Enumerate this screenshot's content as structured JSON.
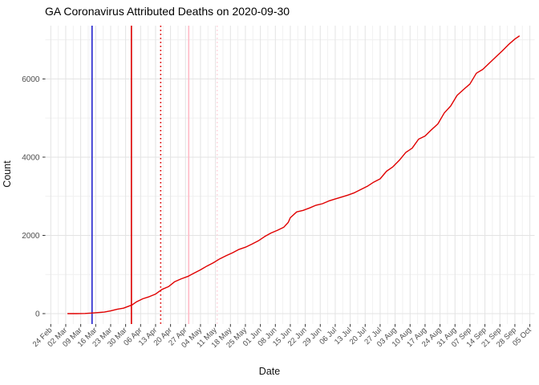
{
  "page": {
    "title": "GA Coronavirus Attributed Deaths on 2020-09-30"
  },
  "chart_data": {
    "type": "line",
    "title": "GA Coronavirus Attributed Deaths on 2020-09-30",
    "xlabel": "Date",
    "ylabel": "Count",
    "x_start_date": "2020-02-24",
    "x_tick_interval_days": 7,
    "x_tick_labels": [
      "24 Feb",
      "02 Mar",
      "09 Mar",
      "16 Mar",
      "23 Mar",
      "30 Mar",
      "06 Apr",
      "13 Apr",
      "20 Apr",
      "27 Apr",
      "04 May",
      "11 May",
      "18 May",
      "25 May",
      "01 Jun",
      "08 Jun",
      "15 Jun",
      "22 Jun",
      "29 Jun",
      "06 Jul",
      "13 Jul",
      "20 Jul",
      "27 Jul",
      "03 Aug",
      "10 Aug",
      "17 Aug",
      "24 Aug",
      "31 Aug",
      "07 Sep",
      "14 Sep",
      "21 Sep",
      "28 Sep",
      "05 Oct"
    ],
    "y_major_ticks": [
      0,
      2000,
      4000,
      6000
    ],
    "y_minor_gridlines": [
      1000,
      3000,
      5000,
      7000
    ],
    "ylim": [
      0,
      7400
    ],
    "grid": true,
    "legend": "none",
    "colors": {
      "series_line": "#e00000",
      "gridline_major": "#e3e3e3",
      "gridline_minor": "#f0f0f0",
      "tick_mark": "#333333",
      "tick_label": "#4d4d4d"
    },
    "vlines": [
      {
        "name": "event-line-blue-solid",
        "date": "2020-03-14",
        "day": 19.3,
        "color": "#2222cc",
        "style": "solid"
      },
      {
        "name": "event-line-red-solid",
        "date": "2020-04-02",
        "day": 37.7,
        "color": "#dd0000",
        "style": "solid"
      },
      {
        "name": "event-line-red-dotted",
        "date": "2020-04-16",
        "day": 51.4,
        "color": "#dd0000",
        "style": "dotted"
      },
      {
        "name": "event-line-pink-solid",
        "date": "2020-04-30",
        "day": 64.5,
        "color": "#ffb9c6",
        "style": "solid"
      },
      {
        "name": "event-line-pink-dotted",
        "date": "2020-05-13",
        "day": 77.8,
        "color": "#ffd3dc",
        "style": "dotted"
      }
    ],
    "series": [
      {
        "name": "cumulative_attributed_deaths",
        "color": "#e00000",
        "points_day_value": [
          [
            8,
            0
          ],
          [
            12,
            1
          ],
          [
            16,
            5
          ],
          [
            19,
            14
          ],
          [
            22,
            26
          ],
          [
            25,
            38
          ],
          [
            28,
            69
          ],
          [
            31,
            111
          ],
          [
            34,
            140
          ],
          [
            36,
            180
          ],
          [
            38,
            222
          ],
          [
            40,
            300
          ],
          [
            43,
            380
          ],
          [
            46,
            432
          ],
          [
            49,
            500
          ],
          [
            52,
            620
          ],
          [
            55,
            690
          ],
          [
            58,
            818
          ],
          [
            61,
            890
          ],
          [
            64,
            950
          ],
          [
            67,
            1036
          ],
          [
            70,
            1120
          ],
          [
            73,
            1216
          ],
          [
            76,
            1300
          ],
          [
            79,
            1400
          ],
          [
            82,
            1480
          ],
          [
            85,
            1557
          ],
          [
            88,
            1642
          ],
          [
            91,
            1697
          ],
          [
            94,
            1775
          ],
          [
            97,
            1860
          ],
          [
            100,
            1970
          ],
          [
            103,
            2060
          ],
          [
            106,
            2130
          ],
          [
            109,
            2210
          ],
          [
            111,
            2330
          ],
          [
            112,
            2450
          ],
          [
            115,
            2600
          ],
          [
            118,
            2640
          ],
          [
            121,
            2700
          ],
          [
            124,
            2770
          ],
          [
            127,
            2810
          ],
          [
            130,
            2880
          ],
          [
            133,
            2930
          ],
          [
            136,
            2980
          ],
          [
            139,
            3030
          ],
          [
            142,
            3090
          ],
          [
            145,
            3175
          ],
          [
            148,
            3255
          ],
          [
            151,
            3360
          ],
          [
            154,
            3445
          ],
          [
            157,
            3640
          ],
          [
            160,
            3755
          ],
          [
            163,
            3920
          ],
          [
            166,
            4120
          ],
          [
            169,
            4230
          ],
          [
            172,
            4460
          ],
          [
            175,
            4540
          ],
          [
            178,
            4700
          ],
          [
            181,
            4850
          ],
          [
            184,
            5130
          ],
          [
            187,
            5310
          ],
          [
            190,
            5580
          ],
          [
            193,
            5730
          ],
          [
            196,
            5870
          ],
          [
            199,
            6145
          ],
          [
            202,
            6245
          ],
          [
            205,
            6400
          ],
          [
            208,
            6555
          ],
          [
            211,
            6710
          ],
          [
            214,
            6875
          ],
          [
            217,
            7020
          ],
          [
            219,
            7095
          ]
        ]
      }
    ]
  }
}
